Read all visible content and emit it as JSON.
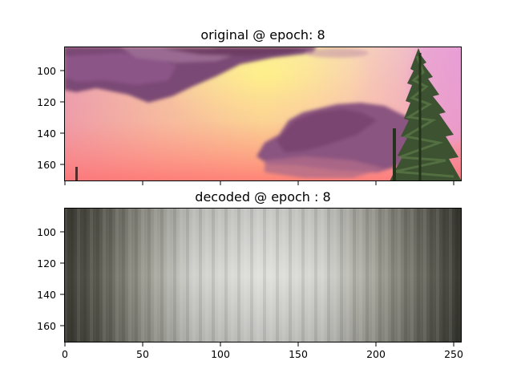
{
  "chart_data": [
    {
      "type": "image",
      "title": "original @ epoch: 8",
      "xlim": [
        0,
        256
      ],
      "ylim": [
        172,
        86
      ],
      "yticks": [
        100,
        120,
        140,
        160
      ],
      "xticks": [
        0,
        50,
        100,
        150,
        200,
        250
      ],
      "x_tick_labels_shown": false,
      "content": "painting: purple clouds, yellow and pink sky, evergreen tree on right"
    },
    {
      "type": "image",
      "title": "decoded @ epoch : 8",
      "xlim": [
        0,
        256
      ],
      "ylim": [
        172,
        86
      ],
      "yticks": [
        100,
        120,
        140,
        160
      ],
      "xticks": [
        0,
        50,
        100,
        150,
        200,
        250
      ],
      "x_tick_labels_shown": true,
      "content": "blurry grey gradient, light center and dark edges"
    }
  ]
}
